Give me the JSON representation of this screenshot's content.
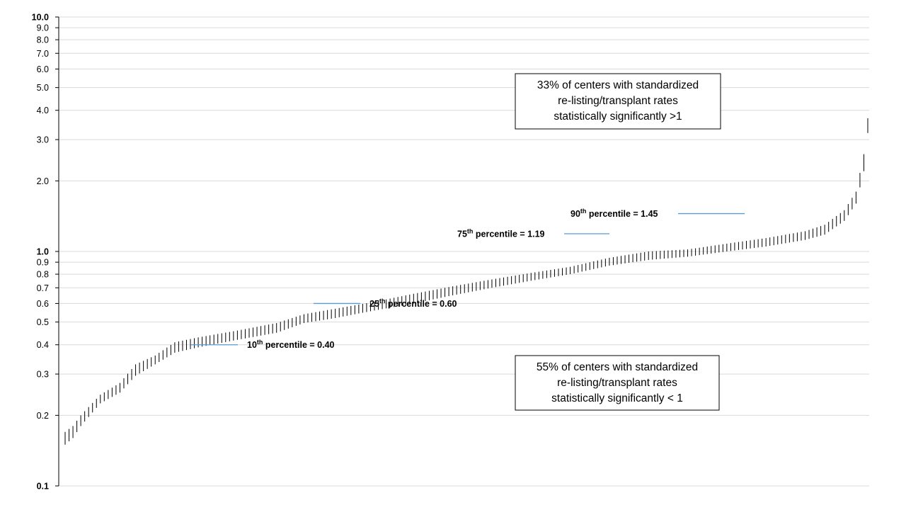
{
  "colors": {
    "grid": "#d9d9d9",
    "bar": "#000000",
    "leader": "#5b9bd5",
    "axis": "#000000"
  },
  "chart_data": {
    "type": "scatter",
    "subtype": "interval-bars-sorted",
    "title": "",
    "xlabel": "",
    "ylabel": "",
    "yscale": "log",
    "ylim": [
      0.1,
      10
    ],
    "grid": true,
    "ytick_values": [
      0.1,
      0.2,
      0.3,
      0.4,
      0.5,
      0.6,
      0.7,
      0.8,
      0.9,
      1.0,
      2.0,
      3.0,
      4.0,
      5.0,
      6.0,
      7.0,
      8.0,
      9.0,
      10.0
    ],
    "ytick_labels": [
      "0.1",
      "0.2",
      "0.3",
      "0.4",
      "0.5",
      "0.6",
      "0.7",
      "0.8",
      "0.9",
      "1.0",
      "2.0",
      "3.0",
      "4.0",
      "5.0",
      "6.0",
      "7.0",
      "8.0",
      "9.0",
      "10.0"
    ],
    "bold_ticks": [
      "0.1",
      "1.0",
      "10.0"
    ],
    "center_count": 206,
    "interval_anchors": [
      [
        1,
        0.15,
        0.17
      ],
      [
        3,
        0.16,
        0.18
      ],
      [
        5,
        0.18,
        0.2
      ],
      [
        10,
        0.225,
        0.245
      ],
      [
        15,
        0.25,
        0.275
      ],
      [
        19,
        0.295,
        0.33
      ],
      [
        24,
        0.33,
        0.36
      ],
      [
        29,
        0.37,
        0.41
      ],
      [
        35,
        0.39,
        0.43
      ],
      [
        45,
        0.42,
        0.46
      ],
      [
        55,
        0.45,
        0.495
      ],
      [
        62,
        0.495,
        0.54
      ],
      [
        70,
        0.52,
        0.57
      ],
      [
        80,
        0.56,
        0.61
      ],
      [
        90,
        0.6,
        0.66
      ],
      [
        100,
        0.65,
        0.71
      ],
      [
        110,
        0.7,
        0.76
      ],
      [
        120,
        0.75,
        0.81
      ],
      [
        130,
        0.8,
        0.86
      ],
      [
        140,
        0.87,
        0.94
      ],
      [
        150,
        0.92,
        1.0
      ],
      [
        160,
        0.95,
        1.02
      ],
      [
        170,
        1.0,
        1.08
      ],
      [
        180,
        1.05,
        1.14
      ],
      [
        190,
        1.12,
        1.22
      ],
      [
        195,
        1.18,
        1.3
      ],
      [
        200,
        1.35,
        1.5
      ],
      [
        203,
        1.6,
        1.8
      ],
      [
        205,
        2.2,
        2.6
      ],
      [
        206,
        3.2,
        3.7
      ]
    ],
    "annotations": [
      {
        "base": "90",
        "sup": "th",
        "rest": " percentile = 1.45",
        "value": 1.45
      },
      {
        "base": "75",
        "sup": "th",
        "rest": " percentile = 1.19",
        "value": 1.19
      },
      {
        "base": "25",
        "sup": "th",
        "rest": " percentile = 0.60",
        "value": 0.6
      },
      {
        "base": "10",
        "sup": "th",
        "rest": " percentile = 0.40",
        "value": 0.4
      }
    ],
    "text_boxes": [
      {
        "lines": [
          "33% of centers with standardized",
          "re-listing/transplant rates",
          "statistically significantly >1"
        ]
      },
      {
        "lines": [
          "55% of centers with standardized",
          "re-listing/transplant rates",
          "statistically significantly < 1"
        ]
      }
    ]
  }
}
